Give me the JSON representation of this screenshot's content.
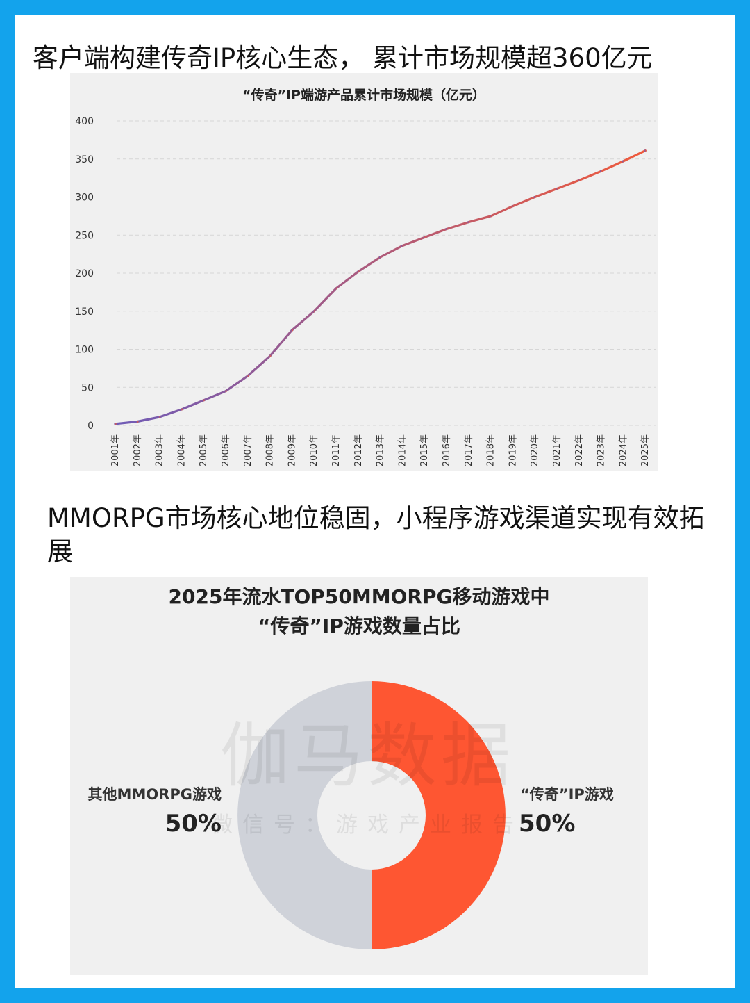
{
  "header": {
    "title1": "客户端构建传奇IP核心生态， 累计市场规模超360亿元",
    "title2": "MMORPG市场核心地位稳固，小程序游戏渠道实现有效拓展"
  },
  "colors": {
    "frame": "#13a3ec",
    "line_start": "#6f5bb7",
    "line_end": "#ef5a3c",
    "donut_legend": "#fe5632",
    "donut_other": "#cfd2d9",
    "panel_bg": "#f0f0f0"
  },
  "chart_data": [
    {
      "type": "line",
      "title": "“传奇”IP端游产品累计市场规模（亿元）",
      "xlabel": "",
      "ylabel": "",
      "categories": [
        "2001年",
        "2002年",
        "2003年",
        "2004年",
        "2005年",
        "2006年",
        "2007年",
        "2008年",
        "2009年",
        "2010年",
        "2011年",
        "2012年",
        "2013年",
        "2014年",
        "2015年",
        "2016年",
        "2017年",
        "2018年",
        "2019年",
        "2020年",
        "2021年",
        "2022年",
        "2023年",
        "2024年",
        "2025年"
      ],
      "series": [
        {
          "values": [
            2,
            5,
            11,
            21,
            33,
            45,
            65,
            91,
            125,
            150,
            180,
            202,
            221,
            236,
            247,
            258,
            267,
            275,
            288,
            300,
            311,
            322,
            334,
            347,
            361
          ]
        }
      ],
      "ylim": [
        0,
        400
      ],
      "yticks": [
        0,
        50,
        100,
        150,
        200,
        250,
        300,
        350,
        400
      ],
      "grid": true,
      "legend": "none"
    },
    {
      "type": "pie",
      "donut": true,
      "title_lines": [
        "2025年流水TOP50MMORPG移动游戏中",
        "“传奇”IP游戏数量占比"
      ],
      "slices": [
        {
          "label": "“传奇”IP游戏",
          "value": 50,
          "display": "50%",
          "color": "#fe5632"
        },
        {
          "label": "其他MMORPG游戏",
          "value": 50,
          "display": "50%",
          "color": "#cfd2d9"
        }
      ],
      "legend": "none"
    }
  ],
  "watermark": {
    "line1": "伽马数据",
    "line2": "微信号：游戏产业报告"
  }
}
